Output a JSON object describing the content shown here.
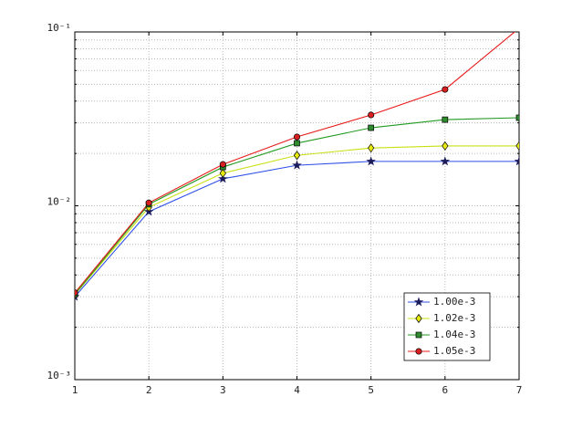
{
  "chart_data": {
    "type": "line",
    "x": [
      1,
      2,
      3,
      4,
      5,
      6,
      7
    ],
    "xlim": [
      1,
      7
    ],
    "xticks": [
      1,
      2,
      3,
      4,
      5,
      6,
      7
    ],
    "ylim": [
      0.001,
      0.1
    ],
    "log_y": true,
    "yticks": [
      {
        "value": 0.001,
        "label": "10⁻³"
      },
      {
        "value": 0.01,
        "label": "10⁻²"
      },
      {
        "value": 0.1,
        "label": "10⁻¹"
      }
    ],
    "yminorticks": [
      0.002,
      0.003,
      0.004,
      0.005,
      0.006,
      0.007,
      0.008,
      0.009,
      0.02,
      0.03,
      0.04,
      0.05,
      0.06,
      0.07,
      0.08,
      0.09
    ],
    "grid": true,
    "legend": "lower right",
    "series": [
      {
        "name": "1.00e-3",
        "color": "#2f4fe8",
        "marker": "star",
        "marker_color": "#1c1c5c",
        "values": [
          0.003,
          0.00925,
          0.0143,
          0.0171,
          0.018,
          0.018,
          0.018
        ]
      },
      {
        "name": "1.02e-3",
        "color": "#c8e010",
        "marker": "diamond",
        "marker_color": "#e6ea10",
        "values": [
          0.00308,
          0.0098,
          0.0154,
          0.0195,
          0.0215,
          0.0221,
          0.0221
        ]
      },
      {
        "name": "1.04e-3",
        "color": "#229a22",
        "marker": "square",
        "marker_color": "#2e8b2e",
        "values": [
          0.0031,
          0.0102,
          0.0167,
          0.0229,
          0.0281,
          0.0313,
          0.0321
        ]
      },
      {
        "name": "1.05e-3",
        "color": "#e81818",
        "marker": "circle",
        "marker_color": "#d82020",
        "values": [
          0.00316,
          0.0104,
          0.0173,
          0.0249,
          0.0333,
          0.0467,
          0.105
        ]
      }
    ]
  }
}
